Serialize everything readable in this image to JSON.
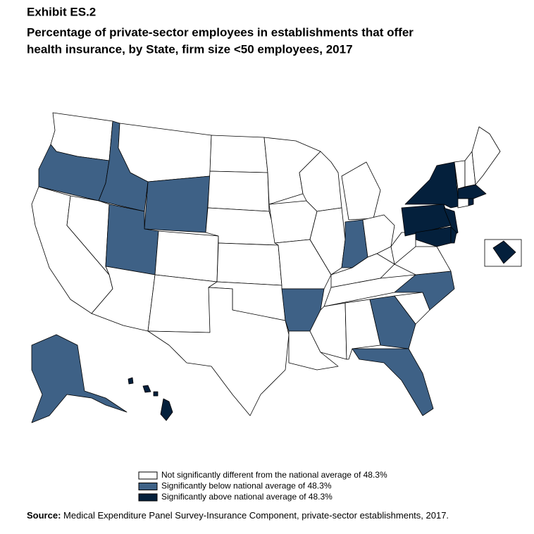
{
  "header": {
    "exhibit": "Exhibit ES.2",
    "title_line1": "Percentage of private-sector employees in establishments that offer",
    "title_line2": "health insurance, by State, firm size <50 employees, 2017"
  },
  "legend": [
    {
      "name": "Not significantly different from the national average of 48.3%",
      "color": "#ffffff"
    },
    {
      "name": "Significantly below national average of 48.3%",
      "color": "#3e6186"
    },
    {
      "name": "Significantly above national average of 48.3%",
      "color": "#04203c"
    }
  ],
  "source": {
    "label": "Source:",
    "text": "Medical Expenditure Panel Survey-Insurance Component, private-sector establishments, 2017."
  }
}
